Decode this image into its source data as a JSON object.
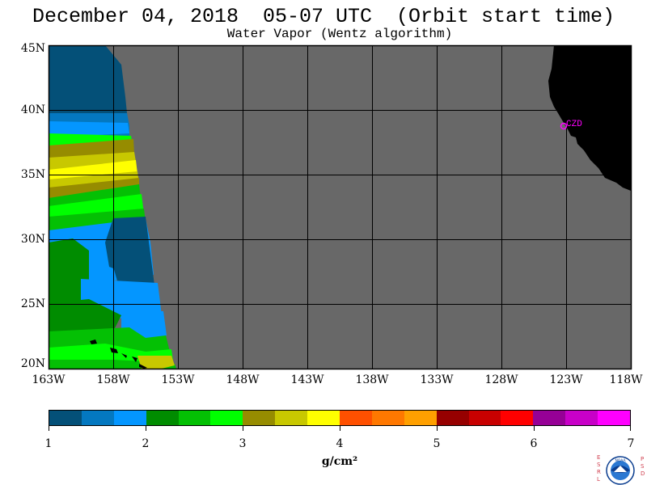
{
  "header": {
    "title": "December 04, 2018  05-07 UTC  (Orbit start time)",
    "subtitle": "Water Vapor (Wentz algorithm)"
  },
  "map": {
    "lat_labels": [
      "45N",
      "40N",
      "35N",
      "30N",
      "25N",
      "20N"
    ],
    "lon_labels": [
      "163W",
      "158W",
      "153W",
      "148W",
      "143W",
      "138W",
      "133W",
      "128W",
      "123W",
      "118W"
    ],
    "station_label": "CZD",
    "colors": {
      "no_data": "#686868",
      "land": "#000000",
      "station": "#ff00ff"
    }
  },
  "colorbar": {
    "tick_labels": [
      "1",
      "2",
      "3",
      "4",
      "5",
      "6",
      "7"
    ],
    "units": "g/cm²",
    "colors": [
      "#045078",
      "#0478c0",
      "#0496ff",
      "#008c00",
      "#04c004",
      "#00ff00",
      "#968c00",
      "#c8c800",
      "#ffff00",
      "#ff5000",
      "#ff7800",
      "#ffa000",
      "#960000",
      "#c80000",
      "#ff0000",
      "#960096",
      "#c800c8",
      "#ff00ff"
    ]
  },
  "logo": {
    "left_text": "ESRL",
    "right_text": "PSD",
    "center_text": "NOAA"
  }
}
